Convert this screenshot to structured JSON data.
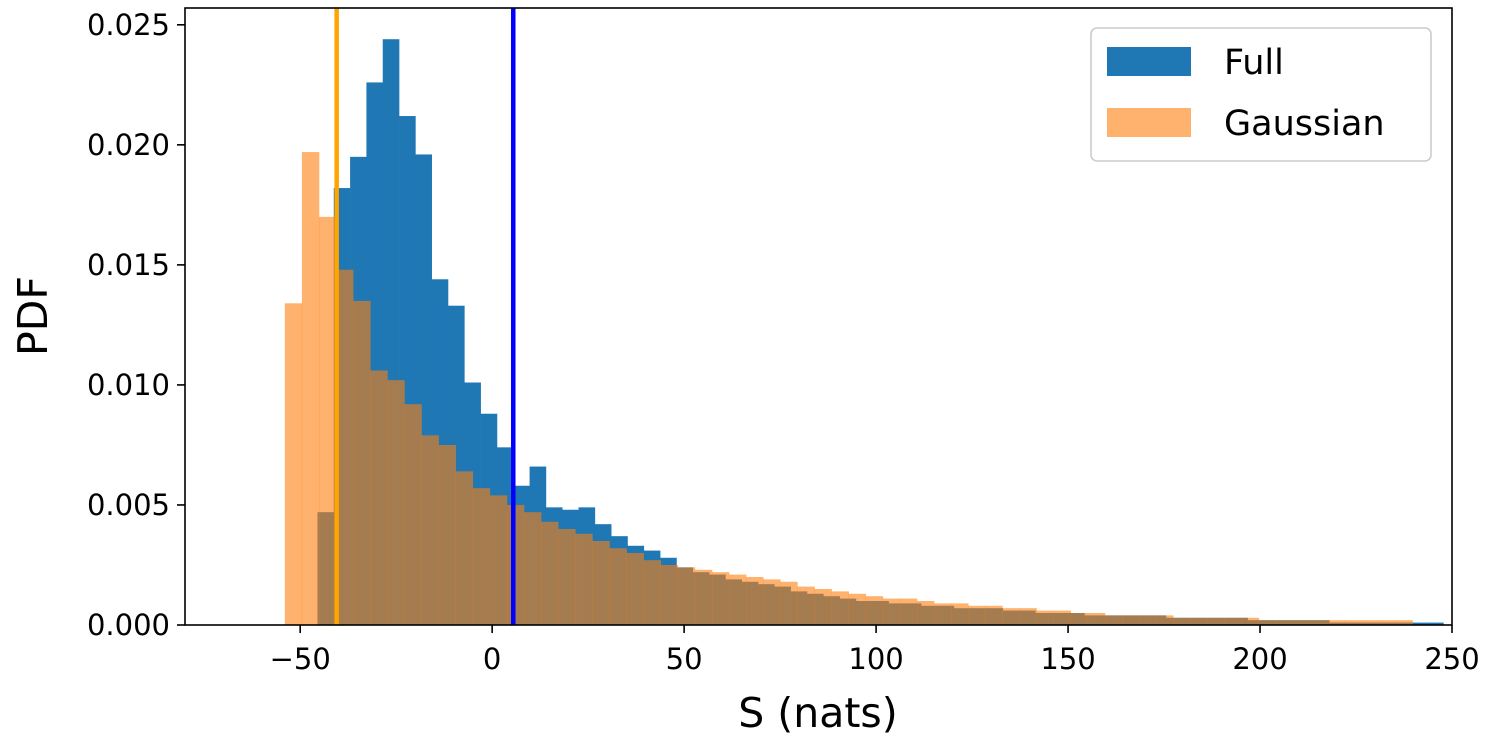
{
  "chart_data": {
    "type": "bar",
    "subtype": "histogram",
    "title": "",
    "xlabel": "S (nats)",
    "ylabel": "PDF",
    "xlim": [
      -80,
      250
    ],
    "ylim": [
      0,
      0.0257
    ],
    "xticks": [
      -50,
      0,
      50,
      100,
      150,
      200,
      250
    ],
    "xtick_labels": [
      "−50",
      "0",
      "50",
      "100",
      "150",
      "200",
      "250"
    ],
    "yticks": [
      0,
      0.005,
      0.01,
      0.015,
      0.02,
      0.025
    ],
    "ytick_labels": [
      "0.000",
      "0.005",
      "0.010",
      "0.015",
      "0.020",
      "0.025"
    ],
    "grid": false,
    "legend_position": "top-right",
    "series": [
      {
        "name": "Full",
        "color": "#1f77b4",
        "opacity": 1.0,
        "bin_start": -45.5,
        "bin_width": 4.25,
        "values": [
          0.0047,
          0.0182,
          0.0195,
          0.0226,
          0.0244,
          0.0212,
          0.0196,
          0.0144,
          0.0133,
          0.0101,
          0.0088,
          0.0074,
          0.0058,
          0.0066,
          0.0049,
          0.0048,
          0.0049,
          0.0042,
          0.0037,
          0.0033,
          0.0031,
          0.0028,
          0.0024,
          0.0022,
          0.0021,
          0.0019,
          0.0018,
          0.0017,
          0.0016,
          0.0014,
          0.0013,
          0.0012,
          0.0011,
          0.001,
          0.001,
          0.0009,
          0.0009,
          0.0008,
          0.0008,
          0.0007,
          0.0007,
          0.0007,
          0.0006,
          0.0006,
          0.0005,
          0.0005,
          0.0005,
          0.0004,
          0.0004,
          0.0004,
          0.0004,
          0.0004,
          0.0003,
          0.0003,
          0.0003,
          0.0003,
          0.0003,
          0.0002,
          0.0002,
          0.0002,
          0.0002,
          0.0002,
          0.0001,
          0.0001,
          0.0001,
          0.0001,
          0.0001,
          0.0001,
          0.0001
        ]
      },
      {
        "name": "Gaussian",
        "color": "#ff7f0e",
        "opacity": 0.6,
        "bin_start": -54,
        "bin_width": 4.45,
        "values": [
          0.0134,
          0.0197,
          0.017,
          0.0148,
          0.0135,
          0.0106,
          0.0102,
          0.0092,
          0.0079,
          0.0075,
          0.0064,
          0.0057,
          0.0054,
          0.005,
          0.0047,
          0.0043,
          0.004,
          0.0038,
          0.0035,
          0.0032,
          0.003,
          0.0027,
          0.0025,
          0.0024,
          0.0023,
          0.0022,
          0.0021,
          0.002,
          0.0019,
          0.0018,
          0.0016,
          0.0015,
          0.0014,
          0.0013,
          0.0012,
          0.0011,
          0.0011,
          0.001,
          0.0009,
          0.0009,
          0.0008,
          0.0008,
          0.0007,
          0.0007,
          0.0006,
          0.0006,
          0.0005,
          0.0005,
          0.0004,
          0.0004,
          0.0004,
          0.0004,
          0.0003,
          0.0003,
          0.0003,
          0.0003,
          0.0003,
          0.0002,
          0.0002,
          0.0002,
          0.0002,
          0.0002,
          0.0002,
          0.0002,
          0.0002,
          0.0002
        ]
      }
    ],
    "vertical_lines": [
      {
        "x": -40.5,
        "color": "#ffa500"
      },
      {
        "x": 5.5,
        "color": "#0000ff"
      }
    ]
  }
}
